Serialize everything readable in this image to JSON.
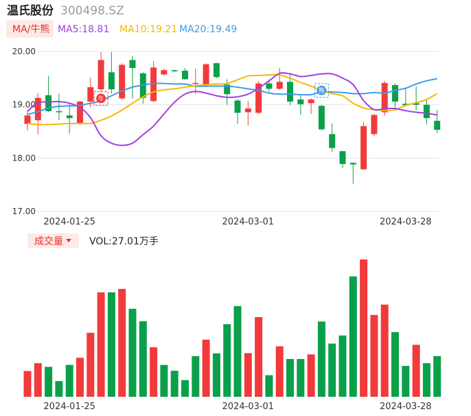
{
  "header": {
    "stock_name": "温氏股份",
    "stock_code": "300498.SZ"
  },
  "legend": {
    "indicator_label": "MA/牛熊",
    "ma5": "MA5:18.81",
    "ma10": "MA10:19.21",
    "ma20": "MA20:19.49"
  },
  "volume_panel": {
    "indicator_label": "成交量",
    "vol_label": "VOL:27.01万手"
  },
  "markers": {
    "bull": "牛",
    "bear": "熊"
  },
  "colors": {
    "up": "#f23a3a",
    "down": "#0aa04a",
    "ma5": "#a040e0",
    "ma10": "#f5b800",
    "ma20": "#3f9ae8",
    "grid": "#e4e4e4",
    "price_label": "#e02020",
    "vol_label": "#1a1a1a"
  },
  "chart_data": [
    {
      "type": "candlestick",
      "title": "",
      "ylim": [
        17.0,
        20.0
      ],
      "y_ticks": [
        "20.00",
        "19.00",
        "18.00",
        "17.00"
      ],
      "x_ticks": [
        "2024-01-25",
        "2024-03-01",
        "2024-03-28"
      ],
      "x_tick_index": [
        4,
        21,
        36
      ],
      "candles": [
        {
          "o": 18.64,
          "c": 18.8,
          "h": 18.88,
          "l": 18.52
        },
        {
          "o": 18.71,
          "c": 19.13,
          "h": 19.22,
          "l": 18.44
        },
        {
          "o": 19.18,
          "c": 18.88,
          "h": 19.54,
          "l": 18.86
        },
        {
          "o": 18.88,
          "c": 18.86,
          "h": 19.21,
          "l": 18.71
        },
        {
          "o": 18.8,
          "c": 18.75,
          "h": 19.04,
          "l": 18.46
        },
        {
          "o": 18.66,
          "c": 19.06,
          "h": 19.08,
          "l": 18.63
        },
        {
          "o": 19.06,
          "c": 19.33,
          "h": 19.51,
          "l": 18.95
        },
        {
          "o": 19.29,
          "c": 19.84,
          "h": 19.99,
          "l": 19.24
        },
        {
          "o": 19.61,
          "c": 19.29,
          "h": 19.99,
          "l": 19.21
        },
        {
          "o": 19.12,
          "c": 19.75,
          "h": 19.78,
          "l": 19.09
        },
        {
          "o": 19.84,
          "c": 19.69,
          "h": 19.92,
          "l": 19.12
        },
        {
          "o": 19.59,
          "c": 19.13,
          "h": 19.61,
          "l": 19.02
        },
        {
          "o": 19.07,
          "c": 19.7,
          "h": 19.82,
          "l": 19.05
        },
        {
          "o": 19.57,
          "c": 19.65,
          "h": 19.68,
          "l": 19.54
        },
        {
          "o": 19.65,
          "c": 19.63,
          "h": 19.66,
          "l": 19.61
        },
        {
          "o": 19.64,
          "c": 19.48,
          "h": 19.69,
          "l": 19.47
        },
        {
          "o": 19.4,
          "c": 19.41,
          "h": 19.68,
          "l": 19.21
        },
        {
          "o": 19.37,
          "c": 19.76,
          "h": 19.78,
          "l": 19.33
        },
        {
          "o": 19.78,
          "c": 19.52,
          "h": 19.79,
          "l": 19.5
        },
        {
          "o": 19.38,
          "c": 19.2,
          "h": 19.48,
          "l": 19.0
        },
        {
          "o": 19.08,
          "c": 18.85,
          "h": 19.11,
          "l": 18.64
        },
        {
          "o": 18.86,
          "c": 18.93,
          "h": 19.07,
          "l": 18.61
        },
        {
          "o": 18.85,
          "c": 19.4,
          "h": 19.45,
          "l": 18.83
        },
        {
          "o": 19.4,
          "c": 19.3,
          "h": 19.48,
          "l": 19.24
        },
        {
          "o": 19.3,
          "c": 19.43,
          "h": 19.69,
          "l": 19.28
        },
        {
          "o": 19.43,
          "c": 19.06,
          "h": 19.6,
          "l": 18.99
        },
        {
          "o": 19.1,
          "c": 19.01,
          "h": 19.2,
          "l": 18.81
        },
        {
          "o": 19.03,
          "c": 19.1,
          "h": 19.12,
          "l": 18.83
        },
        {
          "o": 18.98,
          "c": 18.54,
          "h": 19.0,
          "l": 18.52
        },
        {
          "o": 18.45,
          "c": 18.19,
          "h": 18.65,
          "l": 18.12
        },
        {
          "o": 18.13,
          "c": 17.89,
          "h": 18.14,
          "l": 17.81
        },
        {
          "o": 17.91,
          "c": 17.88,
          "h": 17.92,
          "l": 17.52
        },
        {
          "o": 17.79,
          "c": 18.6,
          "h": 18.67,
          "l": 17.78
        },
        {
          "o": 18.45,
          "c": 18.81,
          "h": 18.83,
          "l": 18.41
        },
        {
          "o": 18.86,
          "c": 19.41,
          "h": 19.45,
          "l": 18.8
        },
        {
          "o": 19.37,
          "c": 19.06,
          "h": 19.4,
          "l": 18.89
        },
        {
          "o": 19.02,
          "c": 18.99,
          "h": 19.3,
          "l": 18.97
        },
        {
          "o": 19.03,
          "c": 19.0,
          "h": 19.35,
          "l": 18.9
        },
        {
          "o": 19.0,
          "c": 18.75,
          "h": 19.1,
          "l": 18.63
        },
        {
          "o": 18.7,
          "c": 18.53,
          "h": 18.9,
          "l": 18.47
        }
      ],
      "ma5": [
        18.88,
        19.04,
        19.05,
        19.06,
        19.03,
        18.95,
        18.76,
        18.42,
        18.28,
        18.24,
        18.28,
        18.44,
        18.6,
        18.83,
        19.05,
        19.2,
        19.25,
        19.22,
        19.17,
        19.14,
        19.15,
        19.2,
        19.31,
        19.45,
        19.59,
        19.58,
        19.53,
        19.55,
        19.58,
        19.58,
        19.5,
        19.38,
        19.08,
        18.91,
        18.93,
        18.93,
        18.89,
        18.86,
        18.84,
        18.81
      ],
      "ma10": [
        18.65,
        18.63,
        18.63,
        18.64,
        18.65,
        18.65,
        18.65,
        18.71,
        18.79,
        18.9,
        19.03,
        19.15,
        19.24,
        19.28,
        19.3,
        19.33,
        19.36,
        19.38,
        19.39,
        19.4,
        19.47,
        19.54,
        19.55,
        19.56,
        19.56,
        19.5,
        19.42,
        19.35,
        19.27,
        19.21,
        19.17,
        19.03,
        18.94,
        18.91,
        18.89,
        18.91,
        18.99,
        19.04,
        19.1,
        19.21
      ],
      "ma20": [
        18.82,
        18.87,
        18.94,
        18.97,
        18.98,
        18.99,
        19.03,
        19.07,
        19.17,
        19.26,
        19.33,
        19.37,
        19.4,
        19.4,
        19.39,
        19.39,
        19.35,
        19.35,
        19.35,
        19.35,
        19.33,
        19.3,
        19.27,
        19.22,
        19.2,
        19.2,
        19.19,
        19.19,
        19.24,
        19.24,
        19.23,
        19.21,
        19.21,
        19.23,
        19.22,
        19.27,
        19.31,
        19.39,
        19.45,
        19.49
      ],
      "marker_bull_index": 7,
      "marker_bear_index": 28
    },
    {
      "type": "bar",
      "title": "",
      "ylim": [
        0,
        56
      ],
      "x_ticks": [
        "2024-01-25",
        "2024-03-01",
        "2024-03-28"
      ],
      "values": [
        10.5,
        13.7,
        12.2,
        6.4,
        13.0,
        15.9,
        26.1,
        42.6,
        42.6,
        44.0,
        35.9,
        30.8,
        20.2,
        13.0,
        10.6,
        6.8,
        16.6,
        23.3,
        17.7,
        29.6,
        37.0,
        17.8,
        32.5,
        8.8,
        20.6,
        15.4,
        15.4,
        17.3,
        30.7,
        21.7,
        25.0,
        49.1,
        56.0,
        33.4,
        37.6,
        26.4,
        12.6,
        21.2,
        13.7,
        16.6
      ],
      "up": [
        true,
        true,
        false,
        false,
        false,
        true,
        true,
        true,
        false,
        true,
        false,
        false,
        true,
        false,
        false,
        false,
        false,
        true,
        false,
        false,
        false,
        true,
        true,
        false,
        true,
        false,
        false,
        true,
        false,
        false,
        false,
        false,
        true,
        true,
        true,
        false,
        false,
        true,
        false,
        false
      ]
    }
  ]
}
